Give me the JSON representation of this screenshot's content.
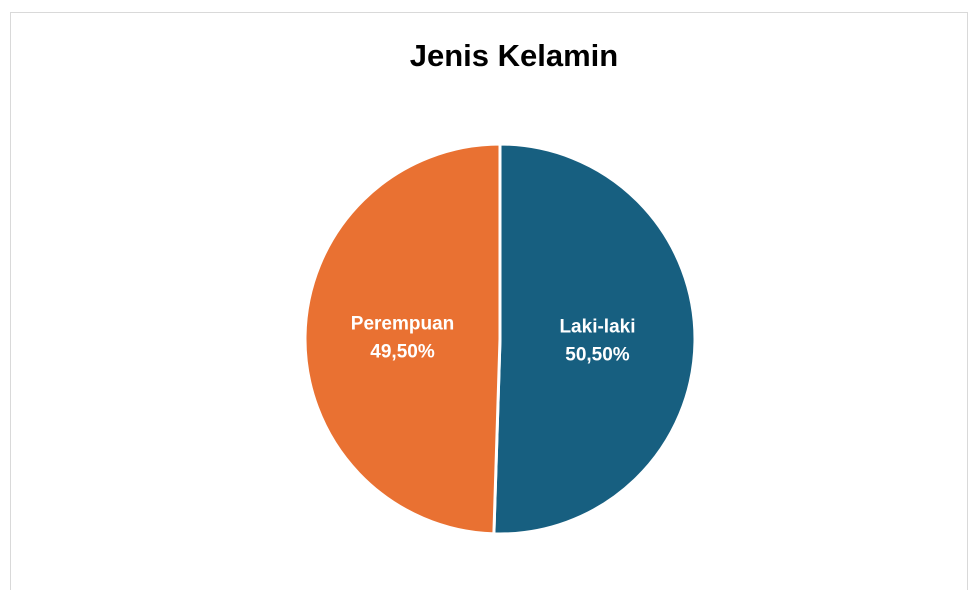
{
  "chart_data": {
    "type": "pie",
    "title": "Jenis Kelamin",
    "categories": [
      "Laki-laki",
      "Perempuan"
    ],
    "values": [
      50.5,
      49.5
    ],
    "value_labels": [
      "50,50%",
      "49,50%"
    ],
    "colors": [
      "#175f80",
      "#e97132"
    ]
  }
}
